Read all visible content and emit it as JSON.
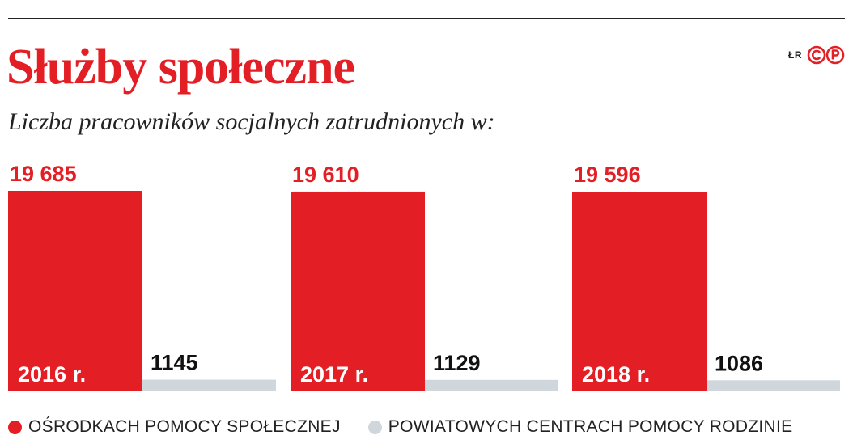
{
  "header": {
    "title": "Służby społeczne",
    "subtitle": "Liczba pracowników socjalnych zatrudnionych w:",
    "author": "ŁR",
    "logo_icon": "cp-logo-icon"
  },
  "legend": {
    "items": [
      {
        "label": "OŚRODKACH POMOCY SPOŁECZNEJ",
        "color": "#e31e24"
      },
      {
        "label": "POWIATOWYCH CENTRACH POMOCY RODZINIE",
        "color": "#cfd6dc"
      }
    ]
  },
  "chart_data": {
    "type": "bar",
    "categories": [
      "2016 r.",
      "2017 r.",
      "2018 r."
    ],
    "value_labels": {
      "osrodki": [
        "19 685",
        "19 610",
        "19 596"
      ],
      "centra": [
        "1145",
        "1129",
        "1086"
      ]
    },
    "series": [
      {
        "name": "OŚRODKACH POMOCY SPOŁECZNEJ",
        "values": [
          19685,
          19610,
          19596
        ],
        "color": "#e31e24"
      },
      {
        "name": "POWIATOWYCH CENTRACH POMOCY RODZINIE",
        "values": [
          1145,
          1129,
          1086
        ],
        "color": "#cfd6dc"
      }
    ],
    "title": "Służby społeczne",
    "subtitle": "Liczba pracowników socjalnych zatrudnionych w:",
    "legend_position": "bottom",
    "grid": false,
    "ylim": [
      0,
      19685
    ]
  }
}
